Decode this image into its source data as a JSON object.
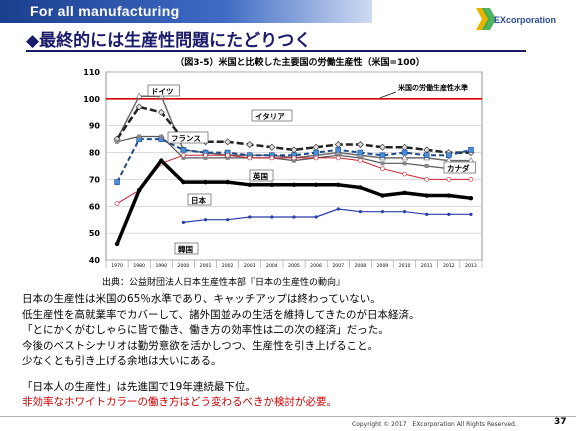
{
  "header": {
    "tag": "For all manufacturing"
  },
  "logo": {
    "text": "EXcorporation"
  },
  "slide_title": "◆最終的には生産性問題にたどりつく",
  "colors": {
    "reference_line": "#d40000",
    "highlight_text": "#cc0000",
    "header_band": "#1b3f8f"
  },
  "chart_data": {
    "type": "line",
    "title": "（図3-5）米国と比較した主要国の労働生産性（米国=100）",
    "categories": [
      "1970",
      "1980",
      "1990",
      "2000",
      "2001",
      "2002",
      "2003",
      "2004",
      "2005",
      "2006",
      "2007",
      "2008",
      "2009",
      "2010",
      "2011",
      "2012",
      "2013"
    ],
    "ylim": [
      40,
      110
    ],
    "yticks": [
      40,
      50,
      60,
      70,
      80,
      90,
      100,
      110
    ],
    "grid": true,
    "reference_line": {
      "value": 100,
      "label": "米国の労働生産性水準"
    },
    "series": [
      {
        "name": "ドイツ",
        "color": "#6a6a6a",
        "dash": "none",
        "width": 1.5,
        "values": [
          85,
          101,
          101,
          81,
          80,
          79,
          79,
          79,
          78,
          79,
          80,
          79,
          78,
          78,
          78,
          77,
          77
        ]
      },
      {
        "name": "イタリア",
        "color": "#222222",
        "dash": "7,3",
        "width": 2.5,
        "values": [
          85,
          97,
          95,
          85,
          84,
          84,
          83,
          82,
          81,
          82,
          83,
          83,
          82,
          82,
          81,
          80,
          80
        ]
      },
      {
        "name": "フランス",
        "color": "#1e4a8c",
        "dash": "5,3",
        "width": 2,
        "values": [
          69,
          85,
          85,
          81,
          80,
          80,
          79,
          79,
          79,
          80,
          81,
          80,
          79,
          80,
          79,
          79,
          81
        ]
      },
      {
        "name": "英国",
        "color": "#555555",
        "dash": "none",
        "width": 1.2,
        "values": [
          84,
          86,
          86,
          78,
          78,
          78,
          78,
          78,
          77,
          78,
          79,
          78,
          76,
          76,
          75,
          74,
          74
        ]
      },
      {
        "name": "カナダ",
        "color": "#cc2233",
        "dash": "none",
        "width": 1,
        "values": [
          61,
          66,
          76,
          79,
          79,
          79,
          78,
          78,
          78,
          78,
          78,
          77,
          74,
          72,
          70,
          70,
          70
        ]
      },
      {
        "name": "日本",
        "color": "#000000",
        "dash": "none",
        "width": 3.5,
        "values": [
          46,
          66,
          77,
          69,
          69,
          69,
          68,
          68,
          68,
          68,
          68,
          67,
          64,
          65,
          64,
          64,
          63
        ]
      },
      {
        "name": "韓国",
        "color": "#2a3fa8",
        "dash": "none",
        "width": 1.2,
        "values": [
          null,
          null,
          null,
          54,
          55,
          55,
          56,
          56,
          56,
          56,
          59,
          58,
          58,
          58,
          57,
          57,
          57
        ]
      }
    ]
  },
  "source": "出典：公益財団法人日本生産性本部『日本の生産性の動向』",
  "body_lines": [
    "日本の生産性は米国の65％水準であり、キャッチアップは終わっていない。",
    "低生産性を高就業率でカバーして、諸外国並みの生活を維持してきたのが日本経済。",
    "「とにかくがむしゃらに皆で働き、働き方の効率性は二の次の経済」だった。",
    "今後のベストシナリオは勤労意欲を活かしつつ、生産性を引き上げること。",
    "少なくとも引き上げる余地は大いにある。"
  ],
  "note_lines": [
    "「日本人の生産性」は先進国で19年連続最下位。",
    "非効率なホワイトカラーの働き方はどう変わるべきか検討が必要。"
  ],
  "footer": {
    "copyright": "Copyright © 2017　EXcorporation All Rights Reserved.",
    "page_number": "37"
  }
}
